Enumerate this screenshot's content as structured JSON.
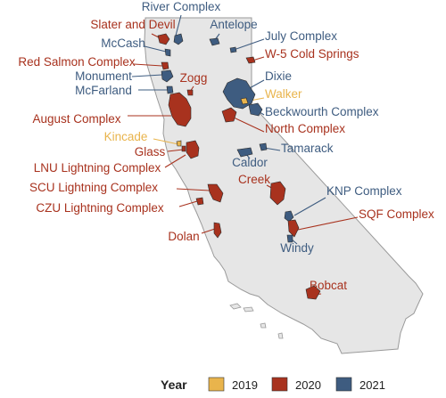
{
  "colors": {
    "2019": "#E9B44C",
    "2020": "#A8321E",
    "2021": "#3E5C80",
    "state_fill": "#E6E6E6",
    "state_stroke": "#9a9a9a"
  },
  "fires": [
    {
      "name": "River Complex",
      "year": "2021"
    },
    {
      "name": "Antelope",
      "year": "2021"
    },
    {
      "name": "Slater and Devil",
      "year": "2020"
    },
    {
      "name": "July Complex",
      "year": "2021"
    },
    {
      "name": "McCash",
      "year": "2021"
    },
    {
      "name": "W-5 Cold Springs",
      "year": "2020"
    },
    {
      "name": "Red Salmon Complex",
      "year": "2020"
    },
    {
      "name": "Monument",
      "year": "2021"
    },
    {
      "name": "Zogg",
      "year": "2020"
    },
    {
      "name": "McFarland",
      "year": "2021"
    },
    {
      "name": "Dixie",
      "year": "2021"
    },
    {
      "name": "Walker",
      "year": "2019"
    },
    {
      "name": "August Complex",
      "year": "2020"
    },
    {
      "name": "Beckwourth Complex",
      "year": "2021"
    },
    {
      "name": "North Complex",
      "year": "2020"
    },
    {
      "name": "Kincade",
      "year": "2019"
    },
    {
      "name": "Tamarack",
      "year": "2021"
    },
    {
      "name": "Glass",
      "year": "2020"
    },
    {
      "name": "Caldor",
      "year": "2021"
    },
    {
      "name": "LNU Lightning Complex",
      "year": "2020"
    },
    {
      "name": "Creek",
      "year": "2020"
    },
    {
      "name": "SCU Lightning Complex",
      "year": "2020"
    },
    {
      "name": "KNP Complex",
      "year": "2021"
    },
    {
      "name": "CZU Lightning Complex",
      "year": "2020"
    },
    {
      "name": "SQF Complex",
      "year": "2020"
    },
    {
      "name": "Dolan",
      "year": "2020"
    },
    {
      "name": "Windy",
      "year": "2021"
    },
    {
      "name": "Bobcat",
      "year": "2020"
    }
  ],
  "legend": {
    "title": "Year",
    "items": [
      {
        "year": "2019",
        "label": "2019"
      },
      {
        "year": "2020",
        "label": "2020"
      },
      {
        "year": "2021",
        "label": "2021"
      }
    ]
  }
}
